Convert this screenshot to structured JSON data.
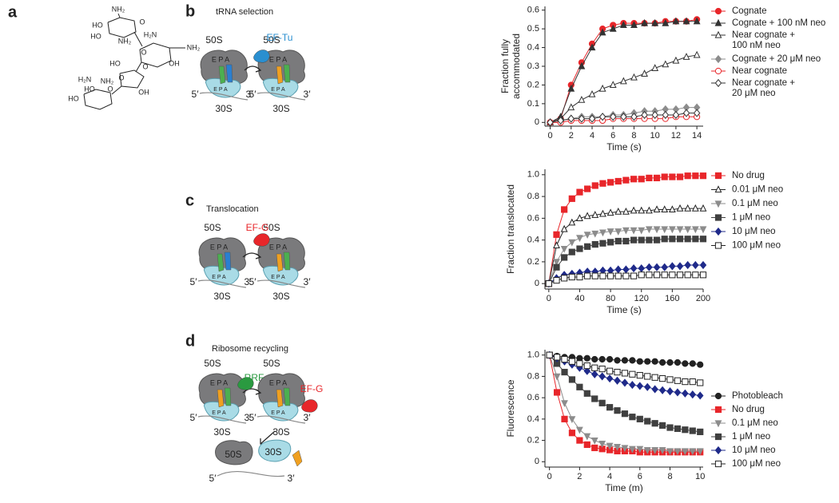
{
  "figure": {
    "panel_labels": [
      "a",
      "b",
      "c",
      "d"
    ],
    "panel_titles": [
      "tRNA selection",
      "Translocation",
      "Ribosome recycling"
    ],
    "diagram_labels": {
      "large": "50S",
      "small": "30S",
      "sites": "E P A",
      "five": "5′",
      "three": "3′",
      "ef_tu": "EF-Tu",
      "ef_g": "EF-G",
      "rrf": "RRF"
    },
    "structure_labels": [
      "NH₂",
      "HO",
      "O",
      "HO",
      "NH₂",
      "H₂N",
      "O",
      "NH₂",
      "HO",
      "O",
      "OH",
      "O",
      "OH",
      "H₂N",
      "NH₂",
      "HO",
      "O",
      "HO"
    ]
  },
  "chart_data": [
    {
      "type": "line",
      "xlabel": "Time (s)",
      "ylabel": "Fraction fully\naccommodated",
      "x": [
        0,
        1,
        2,
        3,
        4,
        5,
        6,
        7,
        8,
        9,
        10,
        11,
        12,
        13,
        14
      ],
      "xlim": [
        -0.5,
        14.6
      ],
      "xticks": [
        0,
        2,
        4,
        6,
        8,
        10,
        12,
        14
      ],
      "ylim": [
        -0.02,
        0.62
      ],
      "yticks": [
        0,
        0.1,
        0.2,
        0.3,
        0.4,
        0.5,
        0.6
      ],
      "series": [
        {
          "name": "Cognate",
          "color": "#e8262a",
          "marker": "circle",
          "filled": true,
          "values": [
            0,
            0.02,
            0.2,
            0.32,
            0.42,
            0.5,
            0.52,
            0.53,
            0.53,
            0.53,
            0.53,
            0.54,
            0.54,
            0.54,
            0.55
          ]
        },
        {
          "name": "Cognate + 100 nM neo",
          "color": "#333333",
          "marker": "triangle",
          "filled": true,
          "values": [
            0,
            0.03,
            0.18,
            0.3,
            0.4,
            0.48,
            0.5,
            0.52,
            0.52,
            0.53,
            0.53,
            0.53,
            0.54,
            0.54,
            0.54
          ]
        },
        {
          "name": "Near cognate +\n100 nM neo",
          "color": "#333333",
          "marker": "triangle",
          "filled": false,
          "values": [
            0,
            0.02,
            0.08,
            0.12,
            0.15,
            0.18,
            0.2,
            0.22,
            0.24,
            0.26,
            0.29,
            0.31,
            0.33,
            0.35,
            0.36
          ]
        },
        {
          "name": "Cognate + 20 μM neo",
          "color": "#8c8c8c",
          "marker": "diamond",
          "filled": true,
          "values": [
            0,
            0.01,
            0.02,
            0.03,
            0.03,
            0.03,
            0.04,
            0.04,
            0.05,
            0.06,
            0.06,
            0.07,
            0.07,
            0.08,
            0.08
          ]
        },
        {
          "name": "Near cognate",
          "color": "#e8262a",
          "marker": "circle",
          "filled": false,
          "values": [
            0,
            0,
            0.01,
            0.01,
            0.01,
            0.01,
            0.02,
            0.02,
            0.02,
            0.02,
            0.02,
            0.02,
            0.03,
            0.03,
            0.03
          ]
        },
        {
          "name": "Near cognate +\n20 μM neo",
          "color": "#333333",
          "marker": "diamond",
          "filled": false,
          "values": [
            0,
            0.01,
            0.02,
            0.02,
            0.02,
            0.03,
            0.03,
            0.03,
            0.03,
            0.04,
            0.04,
            0.04,
            0.04,
            0.05,
            0.05
          ]
        }
      ]
    },
    {
      "type": "line",
      "xlabel": "Time (s)",
      "ylabel": "Fraction translocated",
      "x": [
        0,
        10,
        20,
        30,
        40,
        50,
        60,
        70,
        80,
        90,
        100,
        110,
        120,
        130,
        140,
        150,
        160,
        170,
        180,
        190,
        200
      ],
      "xlim": [
        -5,
        200
      ],
      "xticks": [
        0,
        40,
        80,
        120,
        160,
        200
      ],
      "ylim": [
        -0.05,
        1.05
      ],
      "yticks": [
        0,
        0.2,
        0.4,
        0.6,
        0.8,
        {
          "value": 1,
          "label": "1.0"
        }
      ],
      "series": [
        {
          "name": "No drug",
          "color": "#e8262a",
          "marker": "square",
          "filled": true,
          "values": [
            0,
            0.45,
            0.68,
            0.78,
            0.84,
            0.87,
            0.9,
            0.92,
            0.93,
            0.94,
            0.95,
            0.96,
            0.96,
            0.97,
            0.97,
            0.98,
            0.98,
            0.98,
            0.99,
            0.99,
            0.99
          ]
        },
        {
          "name": "0.01 μM neo",
          "color": "#222222",
          "marker": "triangle",
          "filled": false,
          "values": [
            0,
            0.35,
            0.5,
            0.56,
            0.6,
            0.62,
            0.63,
            0.64,
            0.65,
            0.66,
            0.66,
            0.67,
            0.67,
            0.67,
            0.68,
            0.68,
            0.68,
            0.69,
            0.69,
            0.69,
            0.69
          ]
        },
        {
          "name": "0.1 μM neo",
          "color": "#8c8c8c",
          "marker": "triangle-down",
          "filled": true,
          "values": [
            0,
            0.2,
            0.32,
            0.38,
            0.42,
            0.45,
            0.46,
            0.47,
            0.48,
            0.48,
            0.49,
            0.49,
            0.49,
            0.5,
            0.5,
            0.5,
            0.5,
            0.5,
            0.5,
            0.5,
            0.5
          ]
        },
        {
          "name": "1 μM neo",
          "color": "#404040",
          "marker": "square",
          "filled": true,
          "values": [
            0,
            0.15,
            0.24,
            0.29,
            0.32,
            0.34,
            0.36,
            0.37,
            0.38,
            0.39,
            0.39,
            0.4,
            0.4,
            0.4,
            0.4,
            0.41,
            0.41,
            0.41,
            0.41,
            0.41,
            0.41
          ]
        },
        {
          "name": "10 μM neo",
          "color": "#1f2a8a",
          "marker": "diamond",
          "filled": true,
          "values": [
            0,
            0.05,
            0.08,
            0.09,
            0.1,
            0.11,
            0.11,
            0.12,
            0.12,
            0.13,
            0.13,
            0.14,
            0.14,
            0.15,
            0.15,
            0.15,
            0.16,
            0.16,
            0.17,
            0.17,
            0.17
          ]
        },
        {
          "name": "100 μM neo",
          "color": "#222222",
          "marker": "square",
          "filled": false,
          "values": [
            0,
            0.03,
            0.05,
            0.06,
            0.06,
            0.07,
            0.07,
            0.07,
            0.07,
            0.07,
            0.07,
            0.07,
            0.08,
            0.08,
            0.08,
            0.08,
            0.08,
            0.08,
            0.08,
            0.08,
            0.08
          ]
        }
      ]
    },
    {
      "type": "line",
      "xlabel": "Time (m)",
      "ylabel": "Fluorescence",
      "x": [
        0,
        0.5,
        1,
        1.5,
        2,
        2.5,
        3,
        3.5,
        4,
        4.5,
        5,
        5.5,
        6,
        6.5,
        7,
        7.5,
        8,
        8.5,
        9,
        9.5,
        10
      ],
      "xlim": [
        -0.3,
        10.2
      ],
      "xticks": [
        0,
        2,
        4,
        6,
        8,
        10
      ],
      "ylim": [
        -0.05,
        1.05
      ],
      "yticks": [
        0,
        0.2,
        0.4,
        0.6,
        0.8,
        {
          "value": 1,
          "label": "1.0"
        }
      ],
      "series": [
        {
          "name": "Photobleach",
          "color": "#222222",
          "marker": "circle",
          "filled": true,
          "values": [
            1,
            0.99,
            0.98,
            0.98,
            0.97,
            0.97,
            0.96,
            0.96,
            0.96,
            0.95,
            0.95,
            0.95,
            0.94,
            0.94,
            0.94,
            0.93,
            0.93,
            0.93,
            0.92,
            0.92,
            0.91
          ]
        },
        {
          "name": "No drug",
          "color": "#e8262a",
          "marker": "square",
          "filled": true,
          "values": [
            1,
            0.65,
            0.4,
            0.27,
            0.2,
            0.16,
            0.13,
            0.12,
            0.11,
            0.1,
            0.1,
            0.1,
            0.09,
            0.09,
            0.09,
            0.09,
            0.09,
            0.09,
            0.09,
            0.09,
            0.09
          ]
        },
        {
          "name": "0.1 μM neo",
          "color": "#8c8c8c",
          "marker": "triangle-down",
          "filled": true,
          "values": [
            1,
            0.8,
            0.55,
            0.4,
            0.3,
            0.24,
            0.2,
            0.17,
            0.15,
            0.14,
            0.13,
            0.12,
            0.12,
            0.11,
            0.11,
            0.11,
            0.1,
            0.1,
            0.1,
            0.1,
            0.1
          ]
        },
        {
          "name": "1 μM neo",
          "color": "#404040",
          "marker": "square",
          "filled": true,
          "values": [
            1,
            0.92,
            0.84,
            0.77,
            0.7,
            0.64,
            0.59,
            0.55,
            0.51,
            0.48,
            0.45,
            0.42,
            0.4,
            0.38,
            0.36,
            0.34,
            0.32,
            0.31,
            0.3,
            0.29,
            0.28
          ]
        },
        {
          "name": "10 μM neo",
          "color": "#1f2a8a",
          "marker": "diamond",
          "filled": true,
          "values": [
            1,
            0.97,
            0.94,
            0.91,
            0.88,
            0.85,
            0.82,
            0.8,
            0.78,
            0.76,
            0.74,
            0.72,
            0.71,
            0.7,
            0.68,
            0.67,
            0.66,
            0.65,
            0.64,
            0.63,
            0.62
          ]
        },
        {
          "name": "100 μM neo",
          "color": "#222222",
          "marker": "square",
          "filled": false,
          "values": [
            1,
            0.98,
            0.96,
            0.94,
            0.92,
            0.9,
            0.88,
            0.87,
            0.85,
            0.84,
            0.83,
            0.82,
            0.81,
            0.8,
            0.79,
            0.78,
            0.77,
            0.76,
            0.75,
            0.75,
            0.74
          ]
        }
      ]
    }
  ]
}
